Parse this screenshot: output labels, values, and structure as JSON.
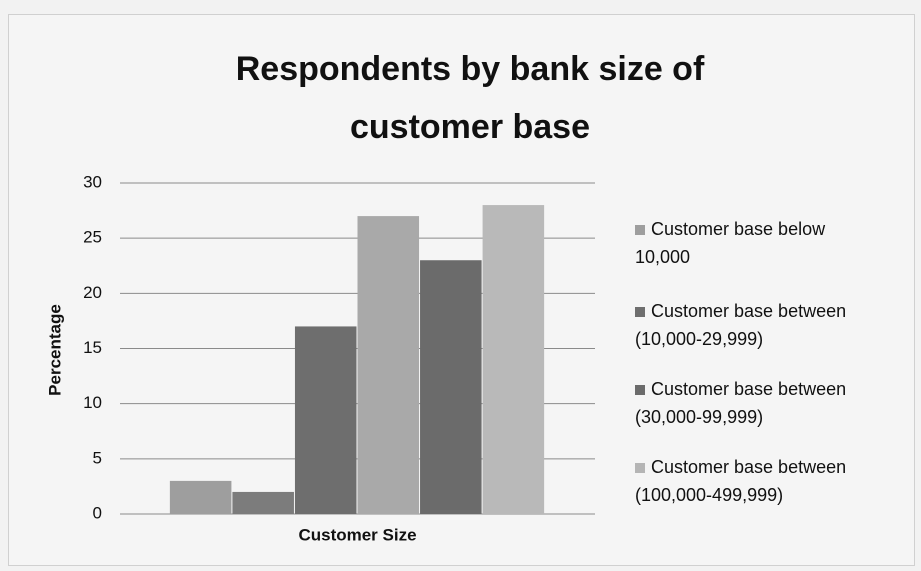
{
  "chart_data": {
    "type": "bar",
    "title": "Respondents by bank size of customer base",
    "x_label": "Customer Size",
    "y_label": "Percentage",
    "values": [
      3,
      2,
      17,
      27,
      23,
      28
    ],
    "colors": [
      "#9e9e9e",
      "#7c7c7c",
      "#6e6e6e",
      "#a9a9a9",
      "#6b6b6b",
      "#b9b9b9"
    ],
    "legend": [
      {
        "name": "Customer base below 10,000",
        "color": "#9e9e9e"
      },
      {
        "name": "Customer base between (10,000-29,999)",
        "color": "#6e6e6e"
      },
      {
        "name": "Customer base between (30,000-99,999)",
        "color": "#6b6b6b"
      },
      {
        "name": "Customer base between (100,000-499,999)",
        "color": "#b5b5b5"
      }
    ],
    "ylim": [
      0,
      30
    ],
    "yticks": [
      0,
      5,
      10,
      15,
      20,
      25,
      30
    ],
    "grid": true
  }
}
